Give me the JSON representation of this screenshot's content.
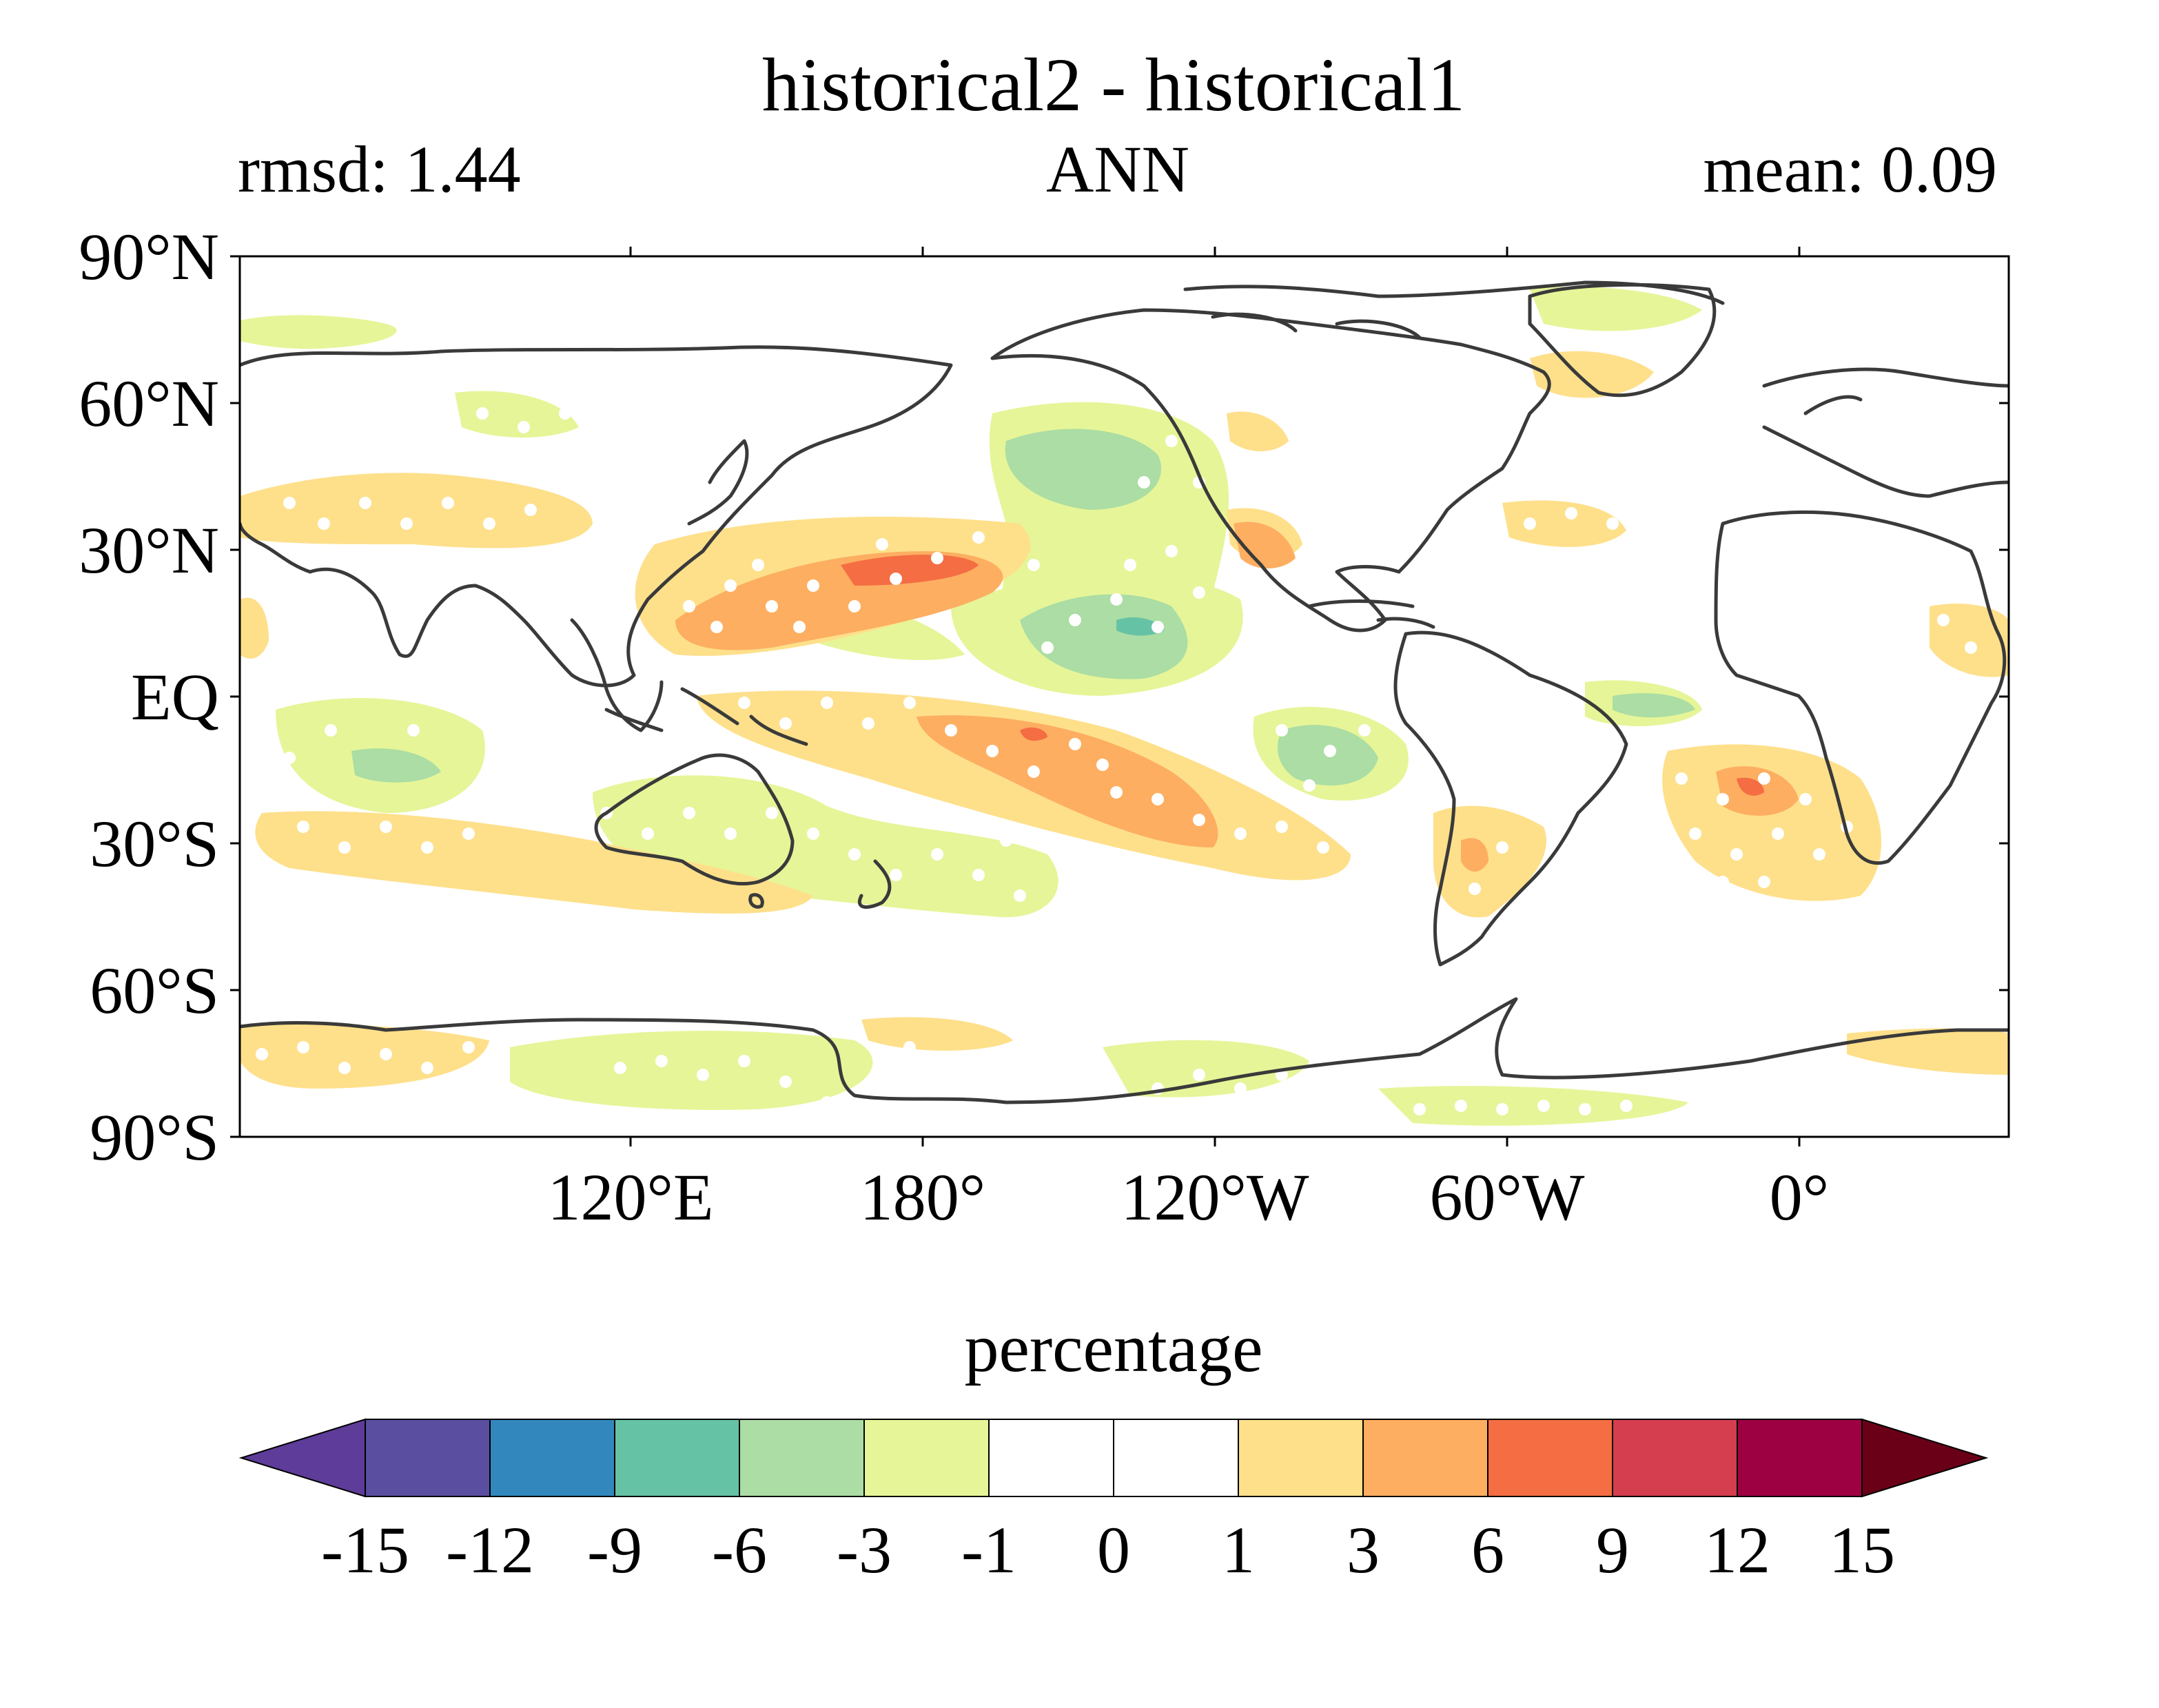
{
  "title": "historical2 - historical1",
  "subtitle_left": "rmsd: 1.44",
  "subtitle_center": "ANN",
  "subtitle_right": "mean: 0.09",
  "map": {
    "projection": "PlateCarree (central longitude 60°E)",
    "lat_ticks": [
      "90°N",
      "60°N",
      "30°N",
      "EQ",
      "30°S",
      "60°S",
      "90°S"
    ],
    "lon_ticks": [
      "120°E",
      "180°",
      "120°W",
      "60°W",
      "0°"
    ],
    "stippling_color": "#ffffff",
    "coastline_color": "#3a3a3a"
  },
  "colorbar": {
    "label": "percentage",
    "extend": "both",
    "tick_labels": [
      "-15",
      "-12",
      "-9",
      "-6",
      "-3",
      "-1",
      "0",
      "1",
      "3",
      "6",
      "9",
      "12",
      "15"
    ],
    "colors": [
      "#5e3c99",
      "#5a4ea1",
      "#3288bd",
      "#66c2a5",
      "#abdda4",
      "#e6f598",
      "#ffffff",
      "#ffffff",
      "#fee08b",
      "#fdae61",
      "#f46d43",
      "#d53e4f",
      "#9e0142",
      "#6a0018"
    ]
  }
}
